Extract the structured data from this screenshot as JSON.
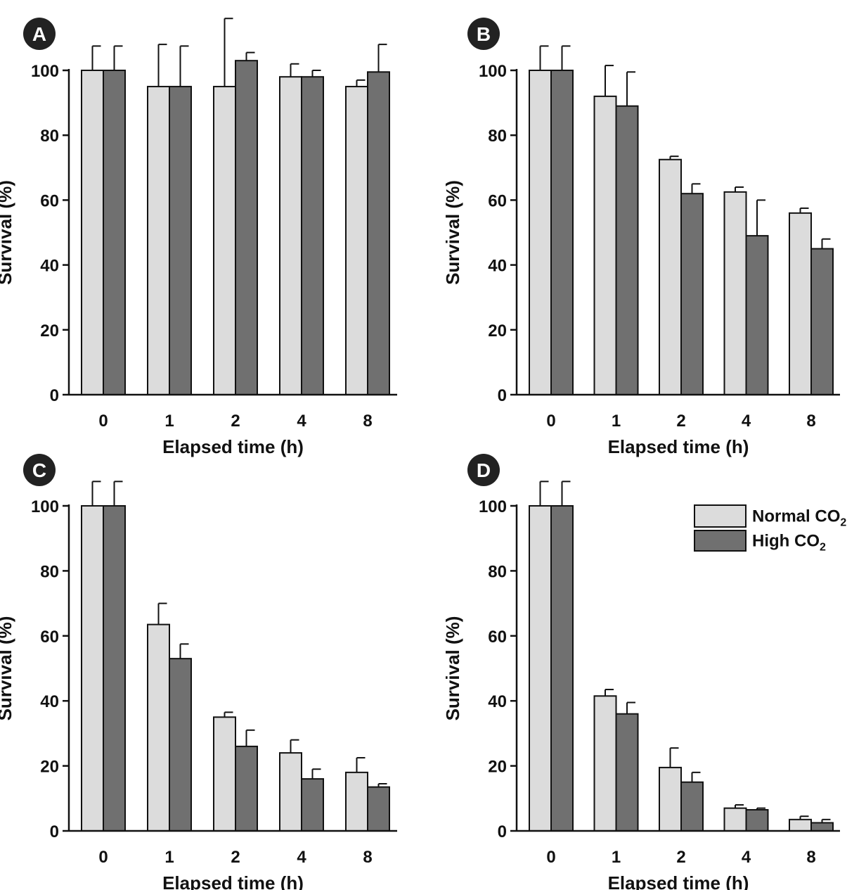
{
  "colors": {
    "normal": "#dcdcdc",
    "high": "#707070",
    "badge": "#222222"
  },
  "legend": {
    "placement": "top-right of panel D",
    "entries": [
      {
        "text": "Normal CO",
        "sub": "2"
      },
      {
        "text": "High CO",
        "sub": "2"
      }
    ]
  },
  "chart_data": [
    {
      "panel": "A",
      "type": "bar",
      "categories": [
        "0",
        "1",
        "2",
        "4",
        "8"
      ],
      "xlabel": "Elapsed time (h)",
      "ylabel": "Survival (%)",
      "ylim": [
        0,
        100
      ],
      "yticks": [
        0,
        20,
        40,
        60,
        80,
        100
      ],
      "grid": false,
      "series": [
        {
          "name": "Normal CO2",
          "values": [
            100,
            95,
            95,
            98,
            95
          ],
          "errors": [
            7.5,
            13,
            21,
            4,
            2
          ]
        },
        {
          "name": "High CO2",
          "values": [
            100,
            95,
            103,
            98,
            99.5
          ],
          "errors": [
            7.5,
            12.5,
            2.5,
            2,
            8.5
          ]
        }
      ]
    },
    {
      "panel": "B",
      "type": "bar",
      "categories": [
        "0",
        "1",
        "2",
        "4",
        "8"
      ],
      "xlabel": "Elapsed time (h)",
      "ylabel": "Survival (%)",
      "ylim": [
        0,
        100
      ],
      "yticks": [
        0,
        20,
        40,
        60,
        80,
        100
      ],
      "grid": false,
      "series": [
        {
          "name": "Normal CO2",
          "values": [
            100,
            92,
            72.5,
            62.5,
            56
          ],
          "errors": [
            7.5,
            9.5,
            1,
            1.5,
            1.5
          ]
        },
        {
          "name": "High CO2",
          "values": [
            100,
            89,
            62,
            49,
            45
          ],
          "errors": [
            7.5,
            10.5,
            3,
            11,
            3
          ]
        }
      ]
    },
    {
      "panel": "C",
      "type": "bar",
      "categories": [
        "0",
        "1",
        "2",
        "4",
        "8"
      ],
      "xlabel": "Elapsed time (h)",
      "ylabel": "Survival (%)",
      "ylim": [
        0,
        100
      ],
      "yticks": [
        0,
        20,
        40,
        60,
        80,
        100
      ],
      "grid": false,
      "series": [
        {
          "name": "Normal CO2",
          "values": [
            100,
            63.5,
            35,
            24,
            18
          ],
          "errors": [
            7.5,
            6.5,
            1.5,
            4,
            4.5
          ]
        },
        {
          "name": "High CO2",
          "values": [
            100,
            53,
            26,
            16,
            13.5
          ],
          "errors": [
            7.5,
            4.5,
            5,
            3,
            1
          ]
        }
      ]
    },
    {
      "panel": "D",
      "type": "bar",
      "categories": [
        "0",
        "1",
        "2",
        "4",
        "8"
      ],
      "xlabel": "Elapsed time (h)",
      "ylabel": "Survival (%)",
      "ylim": [
        0,
        100
      ],
      "yticks": [
        0,
        20,
        40,
        60,
        80,
        100
      ],
      "grid": false,
      "series": [
        {
          "name": "Normal CO2",
          "values": [
            100,
            41.5,
            19.5,
            7,
            3.5
          ],
          "errors": [
            7.5,
            2,
            6,
            1,
            1
          ]
        },
        {
          "name": "High CO2",
          "values": [
            100,
            36,
            15,
            6.5,
            2.5
          ],
          "errors": [
            7.5,
            3.5,
            3,
            0.5,
            1
          ]
        }
      ]
    }
  ]
}
